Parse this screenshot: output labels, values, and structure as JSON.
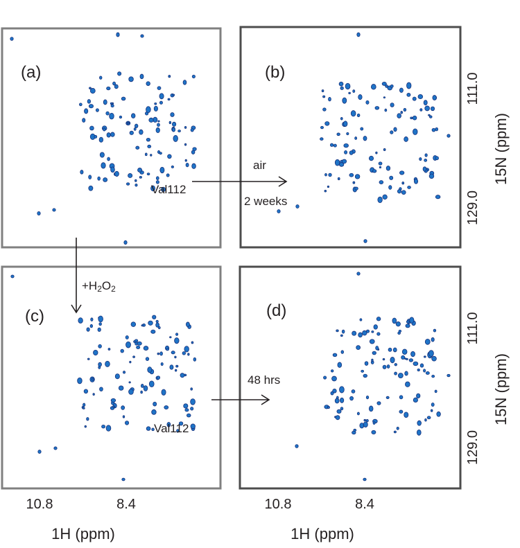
{
  "panels": [
    {
      "label": "(a)",
      "annotation": "Val112"
    },
    {
      "label": "(b)"
    },
    {
      "label": "(c)",
      "annotation": "Val112"
    },
    {
      "label": "(d)"
    }
  ],
  "arrows": [
    {
      "label": "air",
      "sublabel": "2 weeks"
    },
    {
      "label": "+H",
      "sub1": "2",
      "mid": "O",
      "sub2": "2"
    },
    {
      "label": "48 hrs"
    }
  ],
  "axes": {
    "x_label": "1H (ppm)",
    "x_ticks": [
      "10.8",
      "8.4"
    ],
    "y_label": "15N (ppm)",
    "y_ticks": [
      "111.0",
      "129.0"
    ]
  }
}
